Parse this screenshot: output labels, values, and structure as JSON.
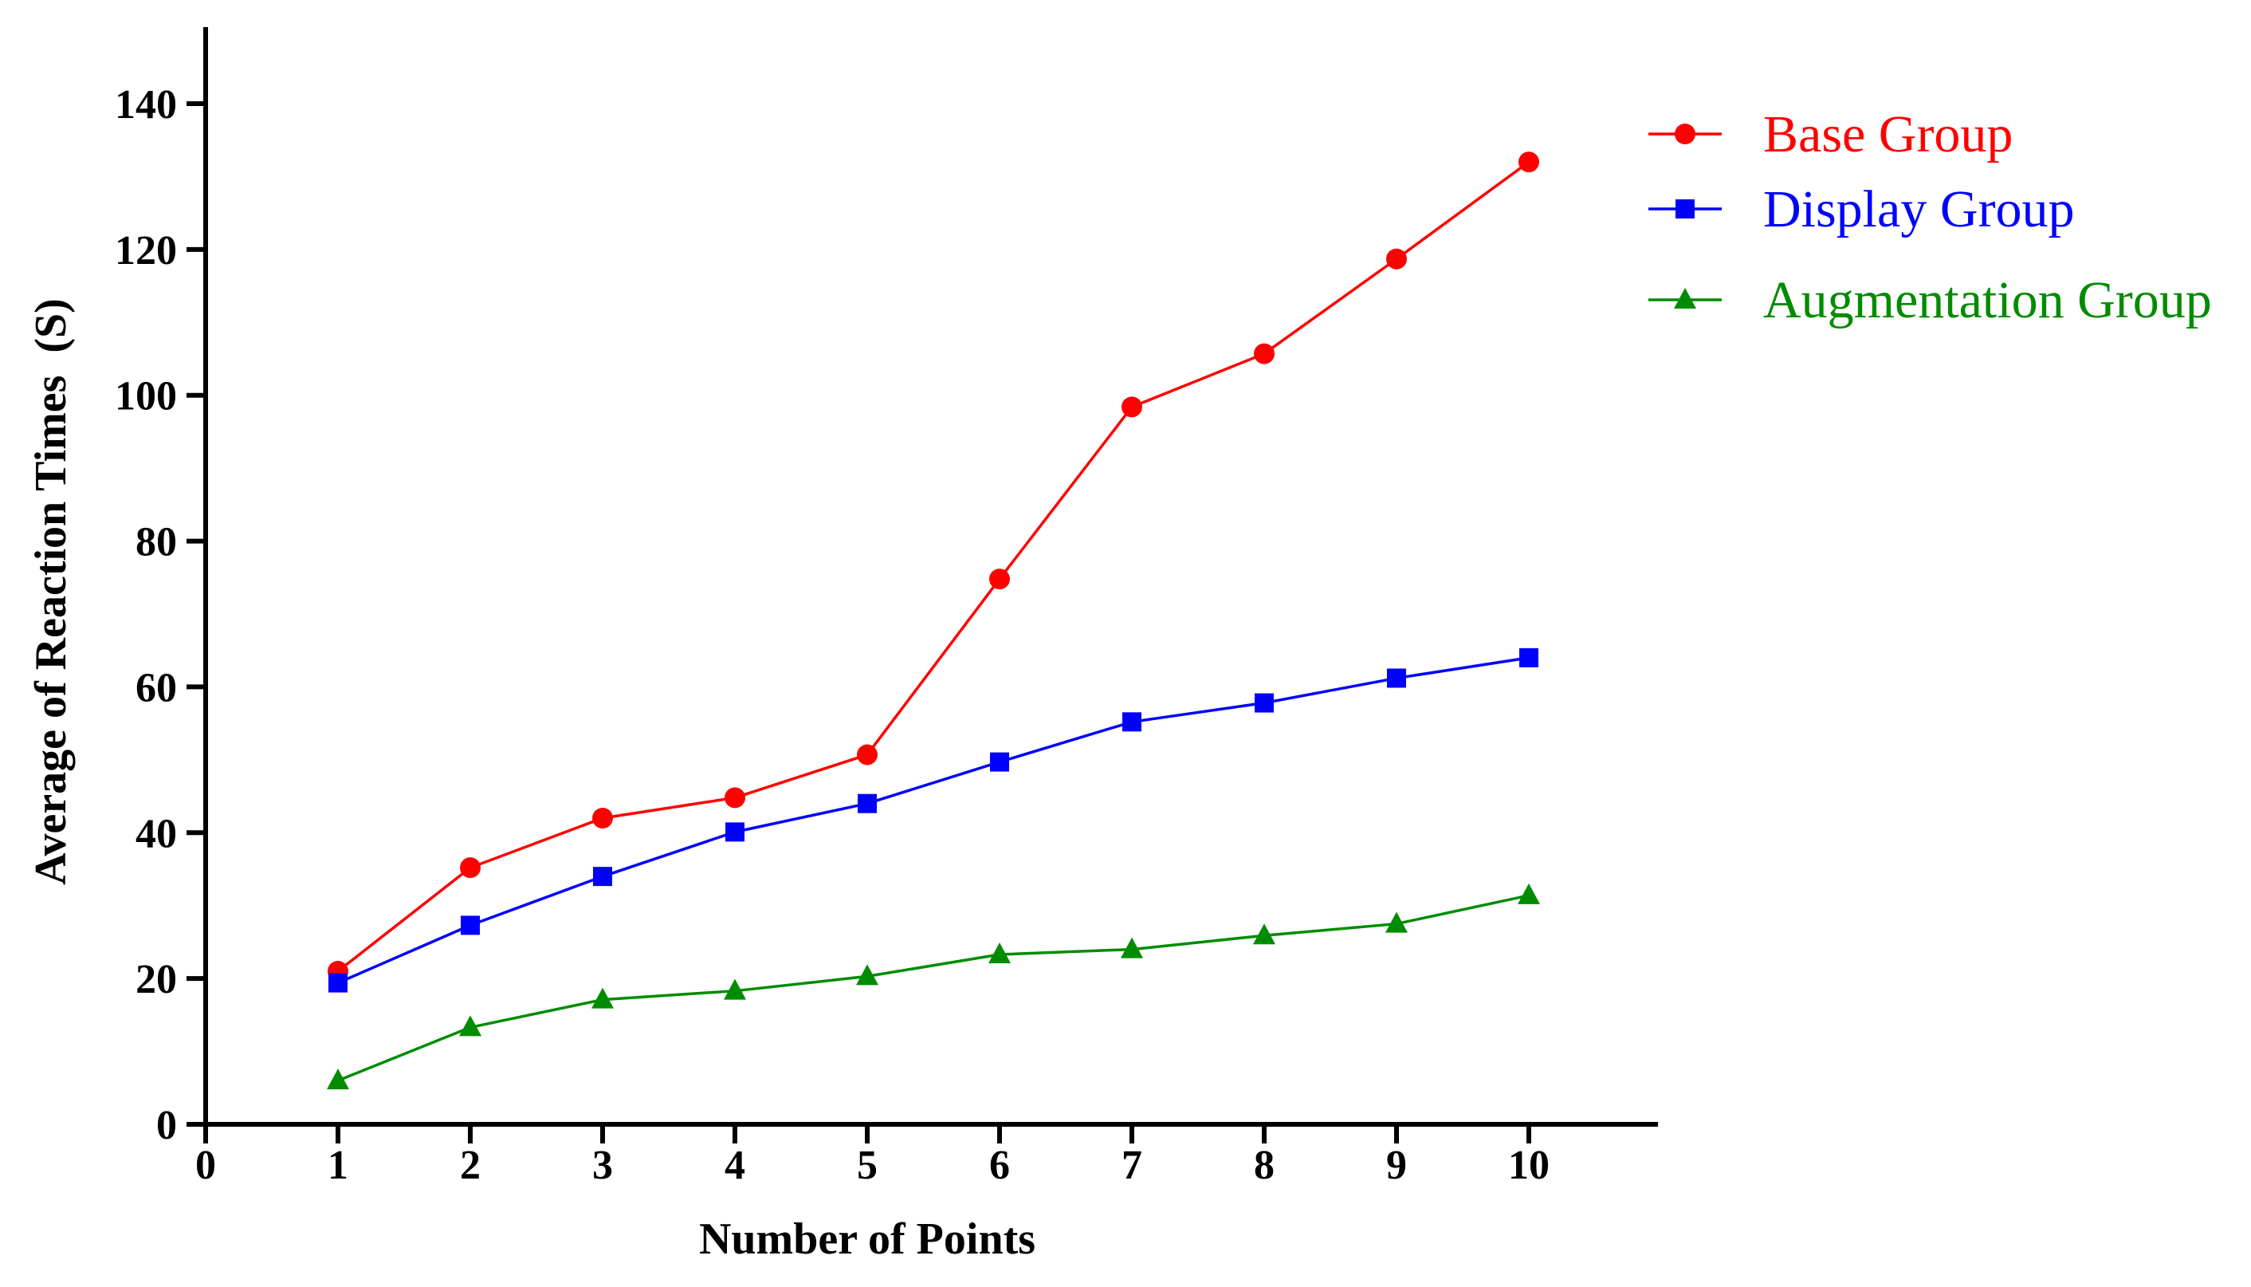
{
  "chart_data": {
    "type": "line",
    "title": "",
    "xlabel": "Number of Points",
    "ylabel": "Average of Reaction Times  (S)",
    "x": [
      1,
      2,
      3,
      4,
      5,
      6,
      7,
      8,
      9,
      10
    ],
    "x_ticks": [
      "0",
      "1",
      "2",
      "3",
      "4",
      "5",
      "6",
      "7",
      "8",
      "9",
      "10"
    ],
    "y_ticks": [
      "0",
      "20",
      "40",
      "60",
      "80",
      "100",
      "120",
      "140"
    ],
    "xlim": [
      0,
      11
    ],
    "ylim": [
      0,
      150
    ],
    "grid": false,
    "legend_position": "top-right",
    "series": [
      {
        "name": "Base Group",
        "color": "#ff0000",
        "marker": "circle",
        "values": [
          21,
          35.2,
          42,
          44.8,
          50.7,
          74.8,
          98.4,
          105.7,
          118.7,
          132
        ]
      },
      {
        "name": "Display Group",
        "color": "#0000ff",
        "marker": "square",
        "values": [
          19.4,
          27.3,
          34,
          40.1,
          44,
          49.7,
          55.2,
          57.8,
          61.2,
          64
        ]
      },
      {
        "name": "Augmentation Group",
        "color": "#008c00",
        "marker": "triangle",
        "values": [
          6,
          13.3,
          17.1,
          18.3,
          20.3,
          23.3,
          24,
          25.9,
          27.5,
          31.4
        ]
      }
    ]
  }
}
